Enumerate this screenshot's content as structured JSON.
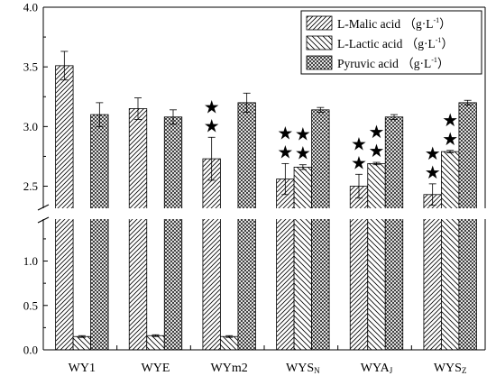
{
  "chart_data": {
    "type": "bar",
    "categories": [
      {
        "base": "WY1",
        "sub": ""
      },
      {
        "base": "WYE",
        "sub": ""
      },
      {
        "base": "WYm2",
        "sub": ""
      },
      {
        "base": "WYS",
        "sub": "N"
      },
      {
        "base": "WYA",
        "sub": "J"
      },
      {
        "base": "WYS",
        "sub": "Z"
      }
    ],
    "series": [
      {
        "name": "L-Malic acid",
        "unit": "（g·L",
        "unit_sup": "-1",
        "unit_end": "）",
        "pattern": "diag-right",
        "values": [
          3.51,
          3.15,
          2.73,
          2.56,
          2.5,
          2.43
        ],
        "errors": [
          0.12,
          0.09,
          0.18,
          0.13,
          0.1,
          0.09
        ]
      },
      {
        "name": "L-Lactic acid",
        "unit": "（g·L",
        "unit_sup": "-1",
        "unit_end": "）",
        "pattern": "diag-left",
        "values": [
          0.15,
          0.16,
          0.15,
          2.66,
          2.69,
          2.79
        ],
        "errors": [
          0.01,
          0.01,
          0.01,
          0.02,
          0.01,
          0.01
        ]
      },
      {
        "name": "Pyruvic acid",
        "unit": "（g·L",
        "unit_sup": "-1",
        "unit_end": "）",
        "pattern": "crosshatch",
        "values": [
          3.1,
          3.08,
          3.2,
          3.14,
          3.08,
          3.2
        ],
        "errors": [
          0.1,
          0.06,
          0.08,
          0.02,
          0.02,
          0.02
        ]
      }
    ],
    "significance": [
      {
        "category": 2,
        "series": 0,
        "stars": 2
      },
      {
        "category": 3,
        "series": 0,
        "stars": 2
      },
      {
        "category": 3,
        "series": 1,
        "stars": 2
      },
      {
        "category": 4,
        "series": 0,
        "stars": 2
      },
      {
        "category": 4,
        "series": 1,
        "stars": 2
      },
      {
        "category": 5,
        "series": 0,
        "stars": 2
      },
      {
        "category": 5,
        "series": 1,
        "stars": 2
      }
    ],
    "star_symbol": "★",
    "y_axis_break": true,
    "y_segments": [
      {
        "range": [
          0,
          1.3
        ],
        "ticks": [
          0.0,
          0.5,
          1.0
        ],
        "tick_labels": [
          "0.0",
          "0.5",
          "1.0"
        ]
      },
      {
        "range": [
          2.3,
          4.0
        ],
        "ticks": [
          2.5,
          3.0,
          3.5,
          4.0
        ],
        "tick_labels": [
          "2.5",
          "3.0",
          "3.5",
          "4.0"
        ]
      }
    ],
    "title": "",
    "xlabel": "",
    "ylabel": "",
    "legend_position": "top-right",
    "grid": false
  }
}
